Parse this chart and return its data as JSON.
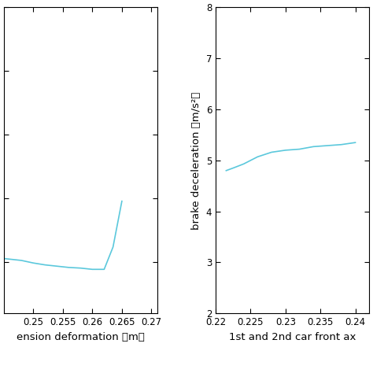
{
  "left": {
    "x": [
      0.245,
      0.248,
      0.25,
      0.252,
      0.254,
      0.256,
      0.258,
      0.26,
      0.262,
      0.2635,
      0.265
    ],
    "y": [
      5.03,
      5.015,
      4.995,
      4.98,
      4.97,
      4.96,
      4.955,
      4.945,
      4.945,
      5.12,
      5.48
    ],
    "xlim": [
      0.245,
      0.271
    ],
    "ylim": [
      4.6,
      7.0
    ],
    "xticks": [
      0.25,
      0.255,
      0.26,
      0.265,
      0.27
    ],
    "xlabel": "ension deformation （m）",
    "line_color": "#5BC8DC",
    "linewidth": 1.2
  },
  "right": {
    "x": [
      0.2215,
      0.2225,
      0.224,
      0.226,
      0.228,
      0.23,
      0.232,
      0.234,
      0.236,
      0.238,
      0.24
    ],
    "y": [
      4.8,
      4.85,
      4.93,
      5.07,
      5.16,
      5.2,
      5.22,
      5.27,
      5.29,
      5.31,
      5.35
    ],
    "xlim": [
      0.22,
      0.242
    ],
    "xticks": [
      0.22,
      0.225,
      0.23,
      0.235,
      0.24
    ],
    "ylim": [
      2,
      8
    ],
    "yticks": [
      2,
      3,
      4,
      5,
      6,
      7,
      8
    ],
    "xlabel": "1st and 2nd car front ax",
    "ylabel": "brake deceleration （m/s²）",
    "line_color": "#5BC8DC",
    "linewidth": 1.2
  },
  "background_color": "#ffffff",
  "tick_fontsize": 8.5,
  "label_fontsize": 9.5
}
